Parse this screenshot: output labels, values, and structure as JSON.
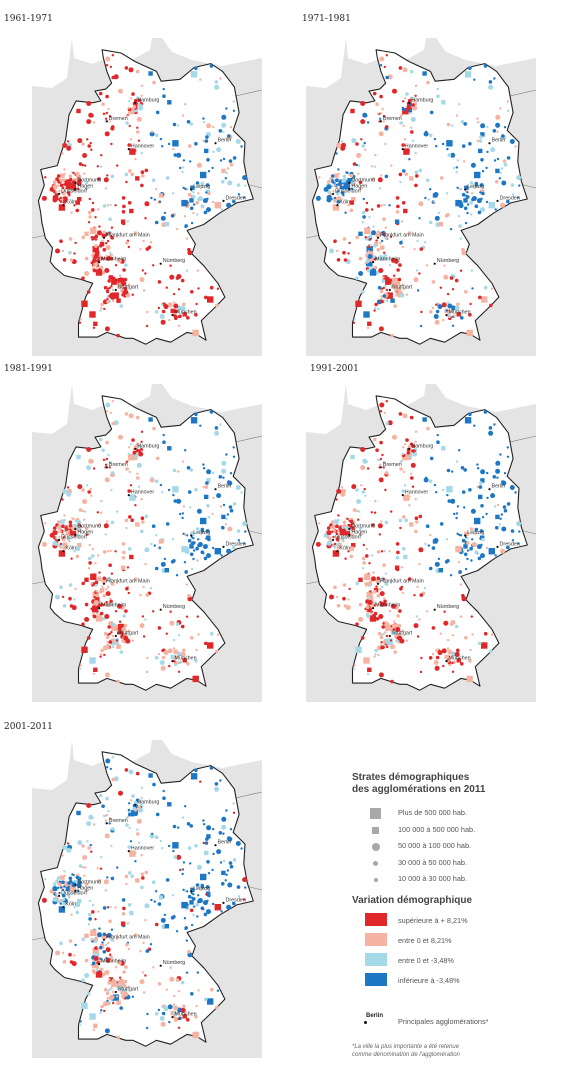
{
  "periods": [
    {
      "label": "1961-1971",
      "scheme": "growth"
    },
    {
      "label": "1971-1981",
      "scheme": "mixed"
    },
    {
      "label": "1981-1991",
      "scheme": "westgrow"
    },
    {
      "label": "1991-2001",
      "scheme": "westgrow2"
    },
    {
      "label": "2001-2011",
      "scheme": "decline"
    }
  ],
  "cities": [
    {
      "name": "Hamburg",
      "lon": 10.0,
      "lat": 53.55
    },
    {
      "name": "Bremen",
      "lon": 8.8,
      "lat": 53.08
    },
    {
      "name": "Berlin",
      "lon": 13.4,
      "lat": 52.52
    },
    {
      "name": "Hannover",
      "lon": 9.73,
      "lat": 52.37
    },
    {
      "name": "Dortmund",
      "lon": 7.47,
      "lat": 51.51
    },
    {
      "name": "Düsseldorf",
      "lon": 6.78,
      "lat": 51.23
    },
    {
      "name": "Hagen",
      "lon": 7.47,
      "lat": 51.36
    },
    {
      "name": "Köln",
      "lon": 6.96,
      "lat": 50.94
    },
    {
      "name": "Leipzig",
      "lon": 12.37,
      "lat": 51.34
    },
    {
      "name": "Dresden",
      "lon": 13.74,
      "lat": 51.05
    },
    {
      "name": "Frankfurt am Main",
      "lon": 8.68,
      "lat": 50.11
    },
    {
      "name": "Mannheim",
      "lon": 8.47,
      "lat": 49.49
    },
    {
      "name": "Nürnberg",
      "lon": 11.08,
      "lat": 49.45
    },
    {
      "name": "Stuttgart",
      "lon": 9.18,
      "lat": 48.78
    },
    {
      "name": "München",
      "lon": 11.58,
      "lat": 48.14
    }
  ],
  "legend": {
    "strata_title_1": "Strates démographiques",
    "strata_title_2": "des agglomérations en 2011",
    "strata": [
      {
        "label": "Plus de 500 000 hab.",
        "shape": "square-large"
      },
      {
        "label": "100 000 à 500 000 hab.",
        "shape": "square-small"
      },
      {
        "label": "50 000 à 100 000 hab.",
        "shape": "circle-large"
      },
      {
        "label": "30 000 à 50 000 hab.",
        "shape": "circle-medium"
      },
      {
        "label": "10 000 à 30 000 hab.",
        "shape": "circle-small"
      }
    ],
    "variation_title": "Variation démographique",
    "classes": [
      {
        "label": "supérieure à + 8,21%",
        "color": "#e0272a"
      },
      {
        "label": "entre 0 et 8,21%",
        "color": "#f6b3a1"
      },
      {
        "label": "entre 0 et -3,48%",
        "color": "#a6d9e8"
      },
      {
        "label": "inférieure à -3,48%",
        "color": "#1e77c4"
      }
    ],
    "city_sample": "Berlin",
    "city_caption": "Principales agglomérations*",
    "note_1": "*La ville la plus importante a été retenue",
    "note_2": "comme dénomination de l'agglomération"
  },
  "colors": {
    "land": "#ffffff",
    "neighbors": "#e4e4e4",
    "border": "#222222",
    "red": "#e0272a",
    "pink": "#f6b3a1",
    "lightblue": "#a6d9e8",
    "blue": "#1e77c4"
  }
}
